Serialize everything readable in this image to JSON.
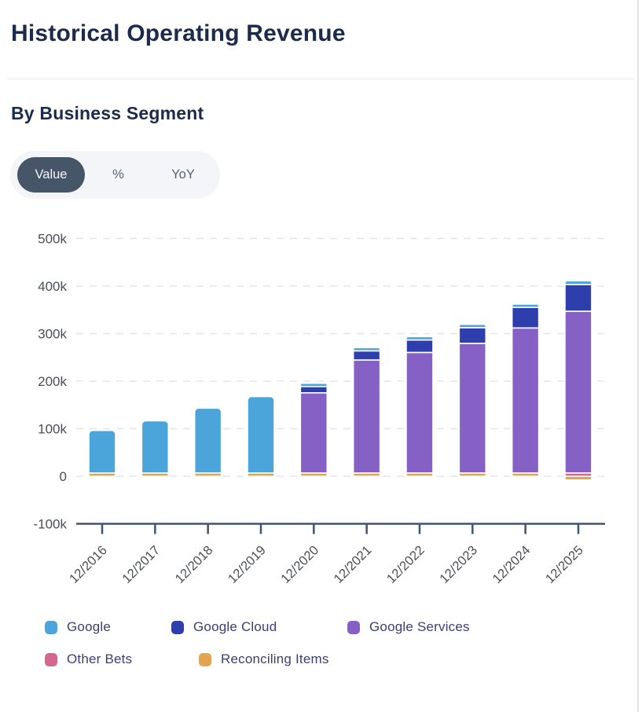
{
  "page": {
    "title": "Historical Operating Revenue",
    "subtitle": "By Business Segment"
  },
  "toggle": {
    "options": [
      "Value",
      "%",
      "YoY"
    ],
    "selected": "Value"
  },
  "colors": {
    "title_text": "#1C2B4C",
    "legend_text": "#3B3E74",
    "axis_line": "#3E5472",
    "axis_text": "#4C4E56",
    "gridline": "#E5E5E8",
    "toggle_selected_bg": "#475569",
    "toggle_selected_text": "#F3F5F8",
    "toggle_bg": "#F4F5F8"
  },
  "chart_data": {
    "type": "bar",
    "stacked": true,
    "grid": "dashed-horizontal",
    "legend_position": "bottom",
    "categories": [
      "12/2016",
      "12/2017",
      "12/2018",
      "12/2019",
      "12/2020",
      "12/2021",
      "12/2022",
      "12/2023",
      "12/2024",
      "12/2025"
    ],
    "series": [
      {
        "name": "Google",
        "color": "#4BA5DB",
        "values": [
          89463,
          109652,
          136224,
          160743,
          5000,
          6000,
          7000,
          7000,
          6000,
          8000
        ]
      },
      {
        "name": "Google Cloud",
        "color": "#2E3EAC",
        "values": [
          0,
          0,
          0,
          0,
          13059,
          19206,
          26280,
          33088,
          43229,
          56000
        ]
      },
      {
        "name": "Google Services",
        "color": "#8560C5",
        "values": [
          0,
          0,
          0,
          0,
          168635,
          237529,
          253528,
          272543,
          304930,
          340000
        ]
      },
      {
        "name": "Other Bets",
        "color": "#D4678D",
        "values": [
          0,
          0,
          0,
          0,
          0,
          0,
          0,
          0,
          0,
          4000
        ]
      },
      {
        "name": "Reconciling Items",
        "color": "#E3A44F",
        "values": [
          3000,
          3000,
          3000,
          3000,
          3000,
          3000,
          3000,
          3000,
          3000,
          -8000
        ]
      }
    ],
    "stack_order_bottom_to_top": [
      "Reconciling Items",
      "Other Bets",
      "Google Services",
      "Google Cloud",
      "Google"
    ],
    "ylim": [
      -100000,
      500000
    ],
    "y_ticks": [
      {
        "label": "500k",
        "value": 500000
      },
      {
        "label": "400k",
        "value": 400000
      },
      {
        "label": "300k",
        "value": 300000
      },
      {
        "label": "200k",
        "value": 200000
      },
      {
        "label": "100k",
        "value": 100000
      },
      {
        "label": "0",
        "value": 0
      },
      {
        "label": "-100k",
        "value": -100000
      }
    ]
  },
  "legend": {
    "rows": [
      [
        "Google",
        "Google Cloud",
        "Google Services"
      ],
      [
        "Other Bets",
        "Reconciling Items"
      ]
    ]
  }
}
